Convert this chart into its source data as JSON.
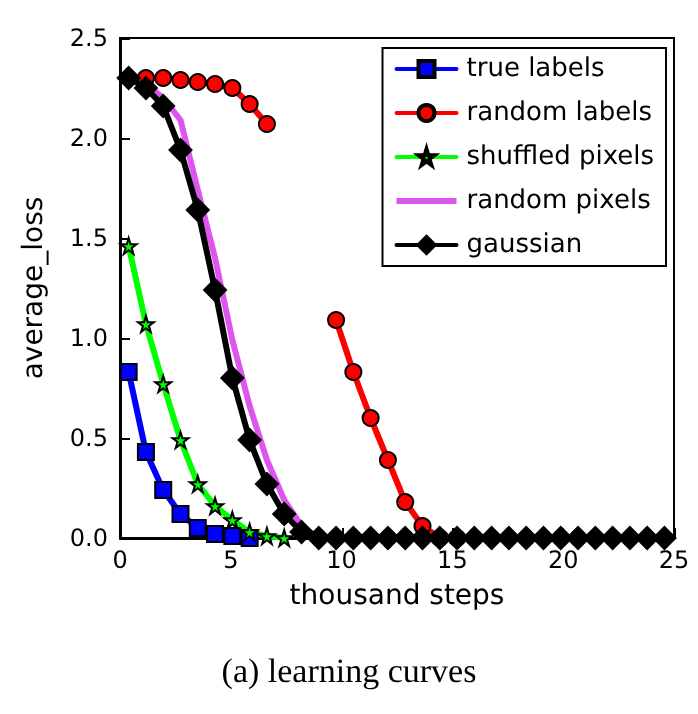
{
  "chart_data": {
    "type": "line",
    "xlabel": "thousand steps",
    "ylabel": "average_loss",
    "annotations": [
      "(a) learning curves"
    ],
    "x": [
      0.39,
      1.17,
      1.95,
      2.73,
      3.51,
      4.29,
      5.07,
      5.85,
      6.63,
      7.41,
      8.19,
      8.97,
      9.75,
      10.53,
      11.31,
      12.09,
      12.87,
      13.65,
      14.43,
      15.21,
      15.99,
      16.77,
      17.55,
      18.33,
      19.11,
      19.89,
      20.67,
      21.45,
      22.23,
      23.01,
      23.79,
      24.57
    ],
    "xlim": [
      0,
      25
    ],
    "xticks": [
      0,
      5,
      10,
      15,
      20,
      25
    ],
    "ylim": [
      0,
      2.5
    ],
    "yticks": [
      {
        "value": 0,
        "label": "0.0"
      },
      {
        "value": 0.5,
        "label": "0.5"
      },
      {
        "value": 1,
        "label": "1.0"
      },
      {
        "value": 1.5,
        "label": "1.5"
      },
      {
        "value": 2,
        "label": "2.0"
      },
      {
        "value": 2.5,
        "label": "2.5"
      }
    ],
    "grid": false,
    "legend": "top right",
    "line_style": "solid",
    "series": [
      {
        "name": "true labels",
        "color": "#0000ff",
        "marker": "square",
        "values": [
          0.83,
          0.43,
          0.24,
          0.12,
          0.05,
          0.02,
          0.01,
          0,
          null,
          null,
          null,
          null,
          null,
          null,
          null,
          null,
          null,
          null,
          null,
          null,
          null,
          null,
          null,
          null,
          null,
          null,
          null,
          null,
          null,
          null,
          null,
          null
        ]
      },
      {
        "name": "random labels",
        "color": "#ff0000",
        "marker": "circle",
        "values": [
          null,
          2.3,
          2.3,
          2.29,
          2.28,
          2.27,
          2.25,
          2.17,
          2.07,
          null,
          null,
          null,
          1.09,
          0.83,
          0.6,
          0.39,
          0.18,
          0.06,
          0,
          0,
          null,
          null,
          null,
          null,
          null,
          null,
          null,
          null,
          null,
          null,
          null,
          null
        ]
      },
      {
        "name": "shuffled pixels",
        "color": "#00ff00",
        "marker": "star",
        "values": [
          1.46,
          1.07,
          0.77,
          0.49,
          0.27,
          0.16,
          0.09,
          0.03,
          0.01,
          0,
          null,
          null,
          null,
          null,
          null,
          null,
          null,
          null,
          null,
          null,
          null,
          null,
          null,
          null,
          null,
          null,
          null,
          null,
          null,
          null,
          null,
          null
        ]
      },
      {
        "name": "random pixels",
        "color": "#dd55ee",
        "marker": "none",
        "values": [
          2.3,
          2.27,
          2.2,
          2.09,
          1.74,
          1.4,
          0.99,
          0.66,
          0.39,
          0.19,
          0.06,
          0,
          null,
          null,
          null,
          null,
          null,
          null,
          null,
          null,
          null,
          null,
          null,
          null,
          null,
          null,
          null,
          null,
          null,
          null,
          null,
          null
        ]
      },
      {
        "name": "gaussian",
        "color": "#000000",
        "marker": "diamond",
        "values": [
          2.3,
          2.25,
          2.16,
          1.94,
          1.64,
          1.24,
          0.8,
          0.49,
          0.27,
          0.12,
          0.03,
          0,
          0,
          0,
          0,
          0,
          0,
          0,
          0,
          0,
          0,
          0,
          0,
          0,
          0,
          0,
          0,
          0,
          0,
          0,
          0,
          0
        ]
      }
    ]
  }
}
